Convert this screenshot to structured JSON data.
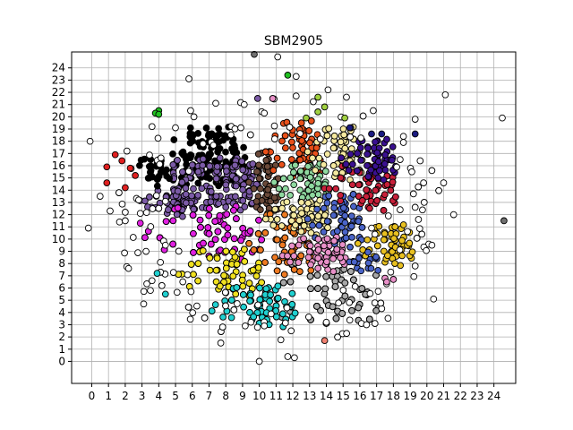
{
  "chart_data": {
    "type": "scatter",
    "title": "SBM2905",
    "xlabel": "",
    "ylabel": "",
    "xlim": [
      -1.2,
      25.3
    ],
    "ylim": [
      -1.8,
      25.3
    ],
    "xticks": [
      0,
      1,
      2,
      3,
      4,
      5,
      6,
      7,
      8,
      9,
      10,
      11,
      12,
      13,
      14,
      15,
      16,
      17,
      18,
      19,
      20,
      21,
      22,
      23,
      24
    ],
    "yticks": [
      0,
      1,
      2,
      3,
      4,
      5,
      6,
      7,
      8,
      9,
      10,
      11,
      12,
      13,
      14,
      15,
      16,
      17,
      18,
      19,
      20,
      21,
      22,
      23,
      24
    ],
    "grid": true,
    "legend": "none",
    "colors": {
      "black": "#000000",
      "purple": "#7b5aa6",
      "brown": "#6b4a3a",
      "red_orange": "#e8501a",
      "mint": "#8fd9a0",
      "magenta": "#e020e0",
      "orange": "#ee7a22",
      "light_yellow": "#f5e9a0",
      "blue": "#4a64c8",
      "crimson": "#c8203a",
      "navy": "#1a1a80",
      "indigo": "#3a1090",
      "gray": "#a8a8a8",
      "pink": "#e890c8",
      "yellow": "#f0e020",
      "gold": "#e8c020",
      "cyan": "#20d0d0",
      "green": "#20c020",
      "lime": "#a0d040",
      "white": "#ffffff",
      "red": "#e02020",
      "salmon": "#f08070",
      "dark_gray": "#707070"
    },
    "clusters": [
      {
        "color": "black",
        "x": [
          5,
          9
        ],
        "y": [
          14.5,
          19
        ]
      },
      {
        "color": "purple",
        "x": [
          5,
          10
        ],
        "y": [
          12.5,
          16.5
        ]
      },
      {
        "color": "purple",
        "x": [
          3,
          6
        ],
        "y": [
          12,
          14
        ]
      },
      {
        "color": "brown",
        "x": [
          9.5,
          11
        ],
        "y": [
          12,
          17
        ]
      },
      {
        "color": "red_orange",
        "x": [
          10.5,
          13.5
        ],
        "y": [
          15,
          19.5
        ]
      },
      {
        "color": "mint",
        "x": [
          11,
          14
        ],
        "y": [
          13,
          16
        ]
      },
      {
        "color": "magenta",
        "x": [
          3,
          10
        ],
        "y": [
          8.5,
          12.5
        ]
      },
      {
        "color": "orange",
        "x": [
          9.5,
          13
        ],
        "y": [
          7,
          12
        ]
      },
      {
        "color": "light_yellow",
        "x": [
          10.5,
          14
        ],
        "y": [
          10.5,
          13
        ]
      },
      {
        "color": "light_yellow",
        "x": [
          13,
          16
        ],
        "y": [
          15,
          19
        ]
      },
      {
        "color": "blue",
        "x": [
          13,
          16
        ],
        "y": [
          9.5,
          13.5
        ]
      },
      {
        "color": "crimson",
        "x": [
          14,
          18
        ],
        "y": [
          12.5,
          16
        ]
      },
      {
        "color": "indigo",
        "x": [
          15,
          18
        ],
        "y": [
          15,
          18
        ]
      },
      {
        "color": "gray",
        "x": [
          10,
          17
        ],
        "y": [
          3,
          8
        ]
      },
      {
        "color": "pink",
        "x": [
          11.5,
          15
        ],
        "y": [
          7.5,
          10
        ]
      },
      {
        "color": "yellow",
        "x": [
          5,
          10
        ],
        "y": [
          5.5,
          9
        ]
      },
      {
        "color": "gold",
        "x": [
          16,
          19
        ],
        "y": [
          8,
          11
        ]
      },
      {
        "color": "cyan",
        "x": [
          7,
          12
        ],
        "y": [
          3,
          6
        ]
      },
      {
        "color": "blue",
        "x": [
          15.5,
          17
        ],
        "y": [
          7.5,
          9
        ]
      },
      {
        "color": "black",
        "x": [
          2.5,
          4.5
        ],
        "y": [
          14.5,
          16.5
        ]
      }
    ],
    "points": [
      {
        "x": 9.7,
        "y": 25.1,
        "color": "dark_gray"
      },
      {
        "x": 11.1,
        "y": 24.9,
        "color": "white"
      },
      {
        "x": 11.7,
        "y": 23.4,
        "color": "green"
      },
      {
        "x": 12.2,
        "y": 23.3,
        "color": "white"
      },
      {
        "x": 5.8,
        "y": 23.1,
        "color": "white"
      },
      {
        "x": 14.1,
        "y": 22.2,
        "color": "white"
      },
      {
        "x": 21.1,
        "y": 21.8,
        "color": "white"
      },
      {
        "x": 12.2,
        "y": 21.7,
        "color": "white"
      },
      {
        "x": 13.5,
        "y": 21.6,
        "color": "lime"
      },
      {
        "x": 15.2,
        "y": 21.6,
        "color": "white"
      },
      {
        "x": 9.9,
        "y": 21.5,
        "color": "purple"
      },
      {
        "x": 10.8,
        "y": 21.5,
        "color": "pink"
      },
      {
        "x": 7.4,
        "y": 21.1,
        "color": "white"
      },
      {
        "x": 9.1,
        "y": 21.0,
        "color": "white"
      },
      {
        "x": 13.9,
        "y": 20.8,
        "color": "lime"
      },
      {
        "x": 13.5,
        "y": 20.4,
        "color": "lime"
      },
      {
        "x": 4.0,
        "y": 20.5,
        "color": "green"
      },
      {
        "x": 3.8,
        "y": 20.3,
        "color": "green"
      },
      {
        "x": 4.0,
        "y": 20.2,
        "color": "green"
      },
      {
        "x": 5.9,
        "y": 20.5,
        "color": "white"
      },
      {
        "x": 10.3,
        "y": 20.3,
        "color": "white"
      },
      {
        "x": 16.8,
        "y": 20.5,
        "color": "white"
      },
      {
        "x": 6.1,
        "y": 20.0,
        "color": "white"
      },
      {
        "x": 12.8,
        "y": 19.9,
        "color": "lime"
      },
      {
        "x": 15.1,
        "y": 19.9,
        "color": "lime"
      },
      {
        "x": 19.3,
        "y": 19.8,
        "color": "white"
      },
      {
        "x": 24.5,
        "y": 19.9,
        "color": "white"
      },
      {
        "x": 3.6,
        "y": 19.2,
        "color": "white"
      },
      {
        "x": 5.0,
        "y": 19.1,
        "color": "white"
      },
      {
        "x": 8.9,
        "y": 19.1,
        "color": "white"
      },
      {
        "x": 15.4,
        "y": 19.1,
        "color": "navy"
      },
      {
        "x": 16.7,
        "y": 18.6,
        "color": "navy"
      },
      {
        "x": 17.3,
        "y": 18.6,
        "color": "navy"
      },
      {
        "x": 18.6,
        "y": 18.4,
        "color": "white"
      },
      {
        "x": 19.3,
        "y": 18.6,
        "color": "navy"
      },
      {
        "x": -0.1,
        "y": 18.0,
        "color": "white"
      },
      {
        "x": 18.6,
        "y": 17.9,
        "color": "white"
      },
      {
        "x": 2.1,
        "y": 17.2,
        "color": "white"
      },
      {
        "x": 1.4,
        "y": 16.9,
        "color": "red"
      },
      {
        "x": 1.8,
        "y": 16.4,
        "color": "red"
      },
      {
        "x": 0.9,
        "y": 15.9,
        "color": "red"
      },
      {
        "x": 2.3,
        "y": 15.8,
        "color": "red"
      },
      {
        "x": 2.6,
        "y": 15.2,
        "color": "red"
      },
      {
        "x": 0.9,
        "y": 14.6,
        "color": "red"
      },
      {
        "x": 2.0,
        "y": 14.2,
        "color": "red"
      },
      {
        "x": 18.4,
        "y": 16.5,
        "color": "white"
      },
      {
        "x": 19.6,
        "y": 16.4,
        "color": "white"
      },
      {
        "x": 20.3,
        "y": 15.6,
        "color": "white"
      },
      {
        "x": 19.1,
        "y": 15.5,
        "color": "white"
      },
      {
        "x": 19.8,
        "y": 14.6,
        "color": "white"
      },
      {
        "x": 21.0,
        "y": 14.6,
        "color": "white"
      },
      {
        "x": 19.2,
        "y": 13.7,
        "color": "white"
      },
      {
        "x": 0.5,
        "y": 13.5,
        "color": "white"
      },
      {
        "x": 2.8,
        "y": 13.2,
        "color": "white"
      },
      {
        "x": 19.3,
        "y": 12.6,
        "color": "white"
      },
      {
        "x": 18.4,
        "y": 12.4,
        "color": "white"
      },
      {
        "x": 1.1,
        "y": 12.3,
        "color": "white"
      },
      {
        "x": 2.0,
        "y": 12.2,
        "color": "white"
      },
      {
        "x": 2.9,
        "y": 12.1,
        "color": "white"
      },
      {
        "x": 21.6,
        "y": 12.0,
        "color": "white"
      },
      {
        "x": 17.7,
        "y": 11.9,
        "color": "white"
      },
      {
        "x": 19.5,
        "y": 11.6,
        "color": "white"
      },
      {
        "x": 2.0,
        "y": 11.5,
        "color": "white"
      },
      {
        "x": 2.9,
        "y": 11.3,
        "color": "magenta"
      },
      {
        "x": 24.6,
        "y": 11.5,
        "color": "dark_gray"
      },
      {
        "x": -0.2,
        "y": 10.9,
        "color": "white"
      },
      {
        "x": 16.7,
        "y": 10.9,
        "color": "white"
      },
      {
        "x": 18.1,
        "y": 11.0,
        "color": "gold"
      },
      {
        "x": 16.9,
        "y": 10.4,
        "color": "white"
      },
      {
        "x": 19.7,
        "y": 10.4,
        "color": "white"
      },
      {
        "x": 20.3,
        "y": 9.5,
        "color": "white"
      },
      {
        "x": 4.4,
        "y": 9.5,
        "color": "white"
      },
      {
        "x": 4.1,
        "y": 8.1,
        "color": "white"
      },
      {
        "x": 19.3,
        "y": 7.8,
        "color": "white"
      },
      {
        "x": 2.2,
        "y": 7.6,
        "color": "white"
      },
      {
        "x": 3.9,
        "y": 7.2,
        "color": "cyan"
      },
      {
        "x": 17.5,
        "y": 6.8,
        "color": "pink"
      },
      {
        "x": 18.0,
        "y": 6.7,
        "color": "pink"
      },
      {
        "x": 17.6,
        "y": 6.5,
        "color": "pink"
      },
      {
        "x": 3.6,
        "y": 6.6,
        "color": "white"
      },
      {
        "x": 3.5,
        "y": 5.8,
        "color": "white"
      },
      {
        "x": 4.4,
        "y": 5.5,
        "color": "cyan"
      },
      {
        "x": 20.4,
        "y": 5.1,
        "color": "white"
      },
      {
        "x": 3.1,
        "y": 4.7,
        "color": "white"
      },
      {
        "x": 16.1,
        "y": 3.1,
        "color": "white"
      },
      {
        "x": 16.4,
        "y": 3.0,
        "color": "white"
      },
      {
        "x": 16.9,
        "y": 3.1,
        "color": "white"
      },
      {
        "x": 14.0,
        "y": 3.2,
        "color": "white"
      },
      {
        "x": 9.5,
        "y": 3.2,
        "color": "white"
      },
      {
        "x": 10.3,
        "y": 2.9,
        "color": "white"
      },
      {
        "x": 11.9,
        "y": 2.5,
        "color": "white"
      },
      {
        "x": 7.7,
        "y": 1.5,
        "color": "white"
      },
      {
        "x": 13.9,
        "y": 1.7,
        "color": "salmon"
      },
      {
        "x": 11.7,
        "y": 0.4,
        "color": "white"
      },
      {
        "x": 12.1,
        "y": 0.3,
        "color": "white"
      },
      {
        "x": 10.0,
        "y": 0.0,
        "color": "white"
      }
    ]
  }
}
